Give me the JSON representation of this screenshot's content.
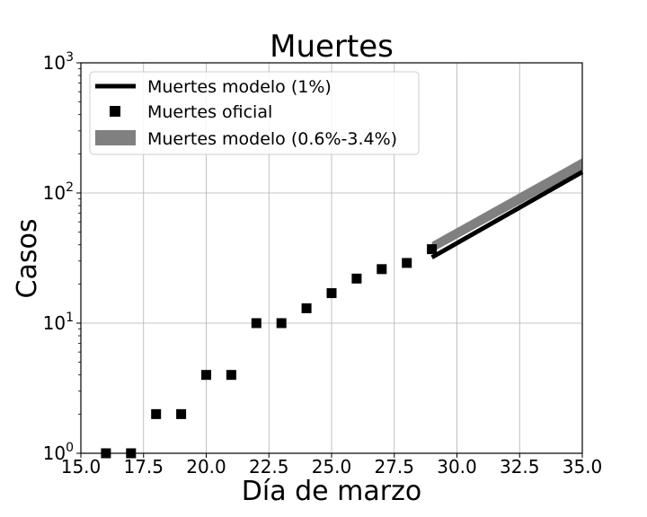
{
  "chart_data": {
    "type": "scatter",
    "title": "Muertes",
    "xlabel": "Día de marzo",
    "ylabel": "Casos",
    "xlim": [
      15.0,
      35.0
    ],
    "ylim": [
      1,
      1000
    ],
    "yscale": "log",
    "grid": true,
    "legend_position": "top-left",
    "x_ticks": [
      "15.0",
      "17.5",
      "20.0",
      "22.5",
      "25.0",
      "27.5",
      "30.0",
      "32.5",
      "35.0"
    ],
    "y_ticks": [
      {
        "base": "10",
        "exp": "0"
      },
      {
        "base": "10",
        "exp": "1"
      },
      {
        "base": "10",
        "exp": "2"
      },
      {
        "base": "10",
        "exp": "3"
      }
    ],
    "series": [
      {
        "name": "Muertes modelo (1%)",
        "kind": "line",
        "color": "#000000",
        "x": [
          29,
          35
        ],
        "y": [
          32,
          145
        ]
      },
      {
        "name": "Muertes oficial",
        "kind": "marker-square",
        "color": "#000000",
        "x": [
          16,
          17,
          18,
          19,
          20,
          21,
          22,
          23,
          24,
          25,
          26,
          27,
          28,
          29
        ],
        "y": [
          1,
          1,
          2,
          2,
          4,
          4,
          10,
          10,
          13,
          17,
          22,
          26,
          29,
          37
        ]
      },
      {
        "name": "Muertes modelo (0.6%-3.4%)",
        "kind": "band",
        "color": "#808080",
        "x": [
          29,
          35
        ],
        "y_low": [
          35,
          150
        ],
        "y_high": [
          42,
          185
        ]
      }
    ]
  }
}
